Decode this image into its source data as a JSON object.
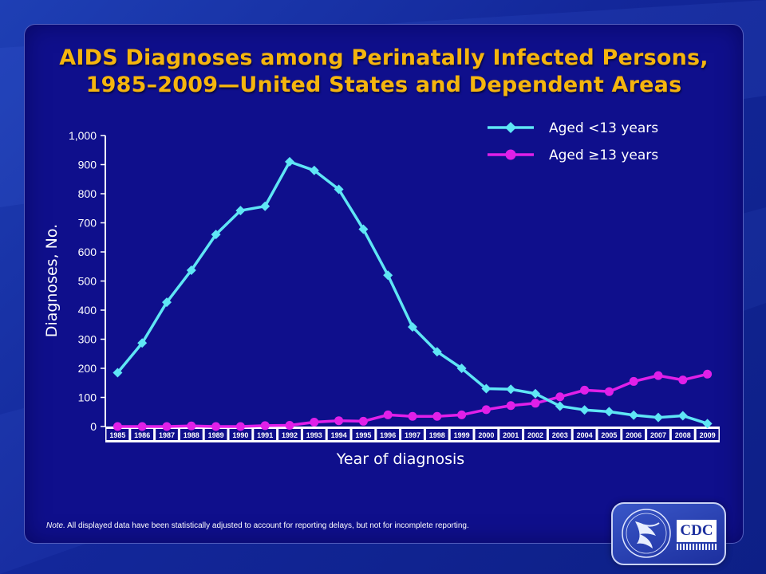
{
  "title": {
    "line1": "AIDS Diagnoses among Perinatally Infected Persons,",
    "line2": "1985–2009—United States and Dependent Areas"
  },
  "note": {
    "label": "Note.",
    "text": " All displayed data have been statistically adjusted to account for reporting delays, but not for incomplete reporting."
  },
  "logo": {
    "text": "CDC"
  },
  "colors": {
    "cyan": "#5fe6f5",
    "magenta": "#e020e8",
    "axis": "#ffffff",
    "title": "#f5b50e"
  },
  "chart_data": {
    "type": "line",
    "title": "AIDS Diagnoses among Perinatally Infected Persons, 1985–2009—United States and Dependent Areas",
    "xlabel": "Year of diagnosis",
    "ylabel": "Diagnoses, No.",
    "ylim": [
      0,
      1000
    ],
    "yticks": [
      0,
      100,
      200,
      300,
      400,
      500,
      600,
      700,
      800,
      900,
      1000
    ],
    "ytick_labels": [
      "0",
      "100",
      "200",
      "300",
      "400",
      "500",
      "600",
      "700",
      "800",
      "900",
      "1,000"
    ],
    "categories": [
      "1985",
      "1986",
      "1987",
      "1988",
      "1989",
      "1990",
      "1991",
      "1992",
      "1993",
      "1994",
      "1995",
      "1996",
      "1997",
      "1998",
      "1999",
      "2000",
      "2001",
      "2002",
      "2003",
      "2004",
      "2005",
      "2006",
      "2007",
      "2008",
      "2009"
    ],
    "legend_position": "top-right",
    "grid": false,
    "series": [
      {
        "name": "Aged <13 years",
        "marker": "diamond",
        "color": "#5fe6f5",
        "values": [
          185,
          287,
          427,
          537,
          660,
          742,
          757,
          910,
          880,
          815,
          678,
          520,
          342,
          257,
          200,
          130,
          128,
          113,
          70,
          57,
          51,
          39,
          31,
          37,
          10
        ]
      },
      {
        "name": "Aged ≥13 years",
        "marker": "circle",
        "color": "#e020e8",
        "values": [
          0,
          0,
          0,
          2,
          0,
          0,
          3,
          4,
          15,
          20,
          18,
          40,
          35,
          35,
          40,
          58,
          72,
          80,
          102,
          125,
          120,
          155,
          175,
          160,
          180
        ]
      }
    ]
  }
}
